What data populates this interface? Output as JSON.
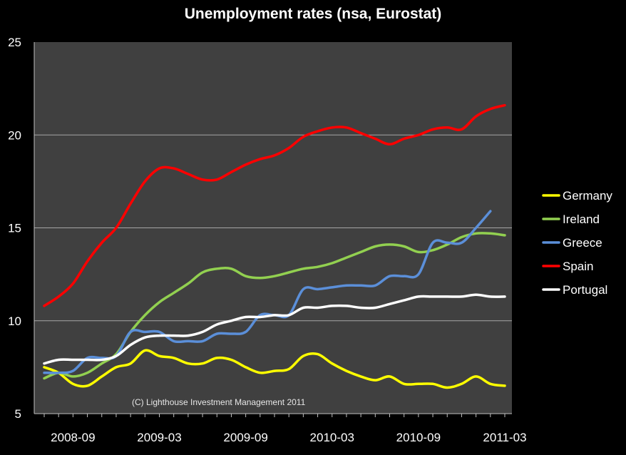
{
  "chart_data": {
    "type": "line",
    "title": "Unemployment rates (nsa, Eurostat)",
    "xlabel": "",
    "ylabel": "",
    "ylim": [
      5,
      25
    ],
    "yticks": [
      5,
      10,
      15,
      20,
      25
    ],
    "grid": true,
    "legend_position": "right",
    "watermark": "(C) Lighthouse Investment Management 2011",
    "background_color": "#404040",
    "x": [
      "2008-07",
      "2008-08",
      "2008-09",
      "2008-10",
      "2008-11",
      "2008-12",
      "2009-01",
      "2009-02",
      "2009-03",
      "2009-04",
      "2009-05",
      "2009-06",
      "2009-07",
      "2009-08",
      "2009-09",
      "2009-10",
      "2009-11",
      "2009-12",
      "2010-01",
      "2010-02",
      "2010-03",
      "2010-04",
      "2010-05",
      "2010-06",
      "2010-07",
      "2010-08",
      "2010-09",
      "2010-10",
      "2010-11",
      "2010-12",
      "2011-01",
      "2011-02",
      "2011-03"
    ],
    "x_tick_labels": [
      "2008-09",
      "2009-03",
      "2009-09",
      "2010-03",
      "2010-09",
      "2011-03"
    ],
    "series": [
      {
        "name": "Germany",
        "color": "#ffff00",
        "values": [
          7.5,
          7.2,
          6.6,
          6.5,
          7.0,
          7.5,
          7.7,
          8.4,
          8.1,
          8.0,
          7.7,
          7.7,
          8.0,
          7.9,
          7.5,
          7.2,
          7.3,
          7.4,
          8.1,
          8.2,
          7.7,
          7.3,
          7.0,
          6.8,
          7.0,
          6.6,
          6.6,
          6.6,
          6.4,
          6.6,
          7.0,
          6.6,
          6.5
        ]
      },
      {
        "name": "Ireland",
        "color": "#92d050",
        "values": [
          6.9,
          7.2,
          7.0,
          7.2,
          7.7,
          8.2,
          9.4,
          10.3,
          11.0,
          11.5,
          12.0,
          12.6,
          12.8,
          12.8,
          12.4,
          12.3,
          12.4,
          12.6,
          12.8,
          12.9,
          13.1,
          13.4,
          13.7,
          14.0,
          14.1,
          14.0,
          13.7,
          13.8,
          14.1,
          14.5,
          14.7,
          14.7,
          14.6
        ]
      },
      {
        "name": "Greece",
        "color": "#5b8fd9",
        "values": [
          7.2,
          7.2,
          7.3,
          8.0,
          8.0,
          8.1,
          9.4,
          9.4,
          9.4,
          8.9,
          8.9,
          8.9,
          9.3,
          9.3,
          9.4,
          10.3,
          10.3,
          10.3,
          11.7,
          11.7,
          11.8,
          11.9,
          11.9,
          11.9,
          12.4,
          12.4,
          12.5,
          14.2,
          14.2,
          14.2,
          15.0,
          15.9,
          null
        ]
      },
      {
        "name": "Spain",
        "color": "#ff0000",
        "values": [
          10.8,
          11.3,
          12.0,
          13.2,
          14.2,
          15.0,
          16.3,
          17.5,
          18.2,
          18.2,
          17.9,
          17.6,
          17.6,
          18.0,
          18.4,
          18.7,
          18.9,
          19.3,
          19.9,
          20.2,
          20.4,
          20.4,
          20.1,
          19.8,
          19.5,
          19.8,
          20.0,
          20.3,
          20.4,
          20.3,
          21.0,
          21.4,
          21.6
        ]
      },
      {
        "name": "Portugal",
        "color": "#ffffff",
        "values": [
          7.7,
          7.9,
          7.9,
          7.9,
          7.9,
          8.1,
          8.7,
          9.1,
          9.2,
          9.2,
          9.2,
          9.4,
          9.8,
          10.0,
          10.2,
          10.2,
          10.3,
          10.3,
          10.7,
          10.7,
          10.8,
          10.8,
          10.7,
          10.7,
          10.9,
          11.1,
          11.3,
          11.3,
          11.3,
          11.3,
          11.4,
          11.3,
          11.3
        ]
      }
    ]
  }
}
